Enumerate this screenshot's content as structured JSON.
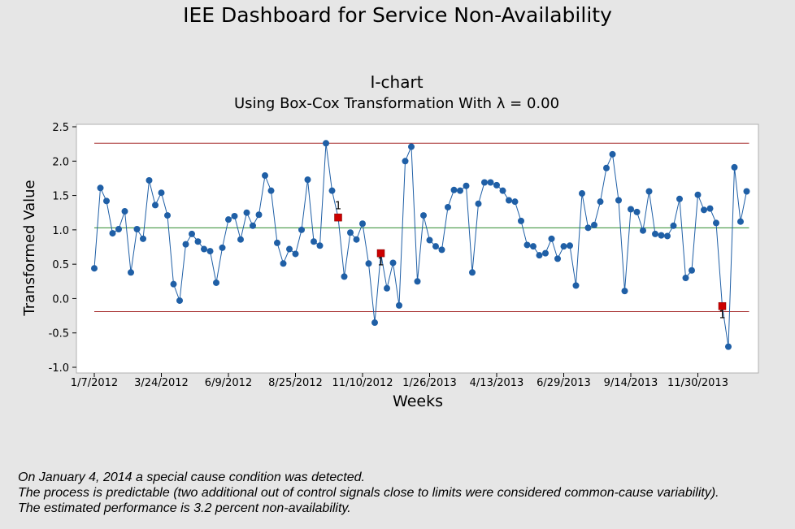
{
  "dashboard_title": "IEE Dashboard for Service  Non-Availability",
  "notes": [
    "On January 4, 2014 a special cause condition was detected.",
    "The process is predictable (two additional out of control signals close to limits were considered common-cause variability).",
    "The estimated performance is 3.2 percent non-availability."
  ],
  "colors": {
    "background": "#e6e6e6",
    "plot_area": "#ffffff",
    "series": "#1f5fa6",
    "center_line": "#2e8b2e",
    "control_limits": "#a52a2a",
    "flagged_point": "#cc0000"
  },
  "chart_data": {
    "type": "line",
    "title": "I-chart",
    "subtitle": "Using Box-Cox Transformation With λ = 0.00",
    "xlabel": "Weeks",
    "ylabel": "Transformed Value",
    "ylim": [
      -1.0,
      2.5
    ],
    "yticks": [
      -1.0,
      -0.5,
      0.0,
      0.5,
      1.0,
      1.5,
      2.0,
      2.5
    ],
    "ytick_labels": [
      "-1.0",
      "-0.5",
      "0.0",
      "0.5",
      "1.0",
      "1.5",
      "2.0",
      "2.5"
    ],
    "xticks": [
      "1/7/2012",
      "3/24/2012",
      "6/9/2012",
      "8/25/2012",
      "11/10/2012",
      "1/26/2013",
      "4/13/2013",
      "6/29/2013",
      "9/14/2013",
      "11/30/2013"
    ],
    "xtick_every_weeks": 11,
    "grid": false,
    "control_limits": {
      "ucl": 2.26,
      "center": 1.03,
      "lcl": -0.19
    },
    "flag_label": "1",
    "flagged_indices": [
      40,
      47,
      103
    ],
    "series": [
      {
        "values": [
          0.44,
          1.61,
          1.42,
          0.95,
          1.01,
          1.27,
          0.38,
          1.01,
          0.87,
          1.72,
          1.36,
          1.54,
          1.21,
          0.21,
          -0.03,
          0.79,
          0.94,
          0.83,
          0.72,
          0.69,
          0.23,
          0.74,
          1.15,
          1.2,
          0.86,
          1.25,
          1.06,
          1.22,
          1.79,
          1.57,
          0.81,
          0.51,
          0.72,
          0.65,
          1.0,
          1.73,
          0.83,
          0.77,
          2.26,
          1.57,
          1.18,
          0.32,
          0.96,
          0.86,
          1.09,
          0.51,
          -0.35,
          0.66,
          0.15,
          0.52,
          -0.1,
          2.0,
          2.21,
          0.25,
          1.21,
          0.85,
          0.76,
          0.71,
          1.33,
          1.58,
          1.57,
          1.64,
          0.38,
          1.38,
          1.69,
          1.69,
          1.65,
          1.57,
          1.43,
          1.41,
          1.13,
          0.78,
          0.76,
          0.63,
          0.66,
          0.87,
          0.58,
          0.76,
          0.77,
          0.19,
          1.53,
          1.03,
          1.07,
          1.41,
          1.9,
          2.1,
          1.43,
          0.11,
          1.3,
          1.26,
          0.99,
          1.56,
          0.94,
          0.92,
          0.91,
          1.06,
          1.45,
          0.3,
          0.41,
          1.51,
          1.29,
          1.31,
          1.1,
          -0.11,
          -0.7,
          1.91,
          1.12,
          1.56
        ]
      }
    ]
  }
}
